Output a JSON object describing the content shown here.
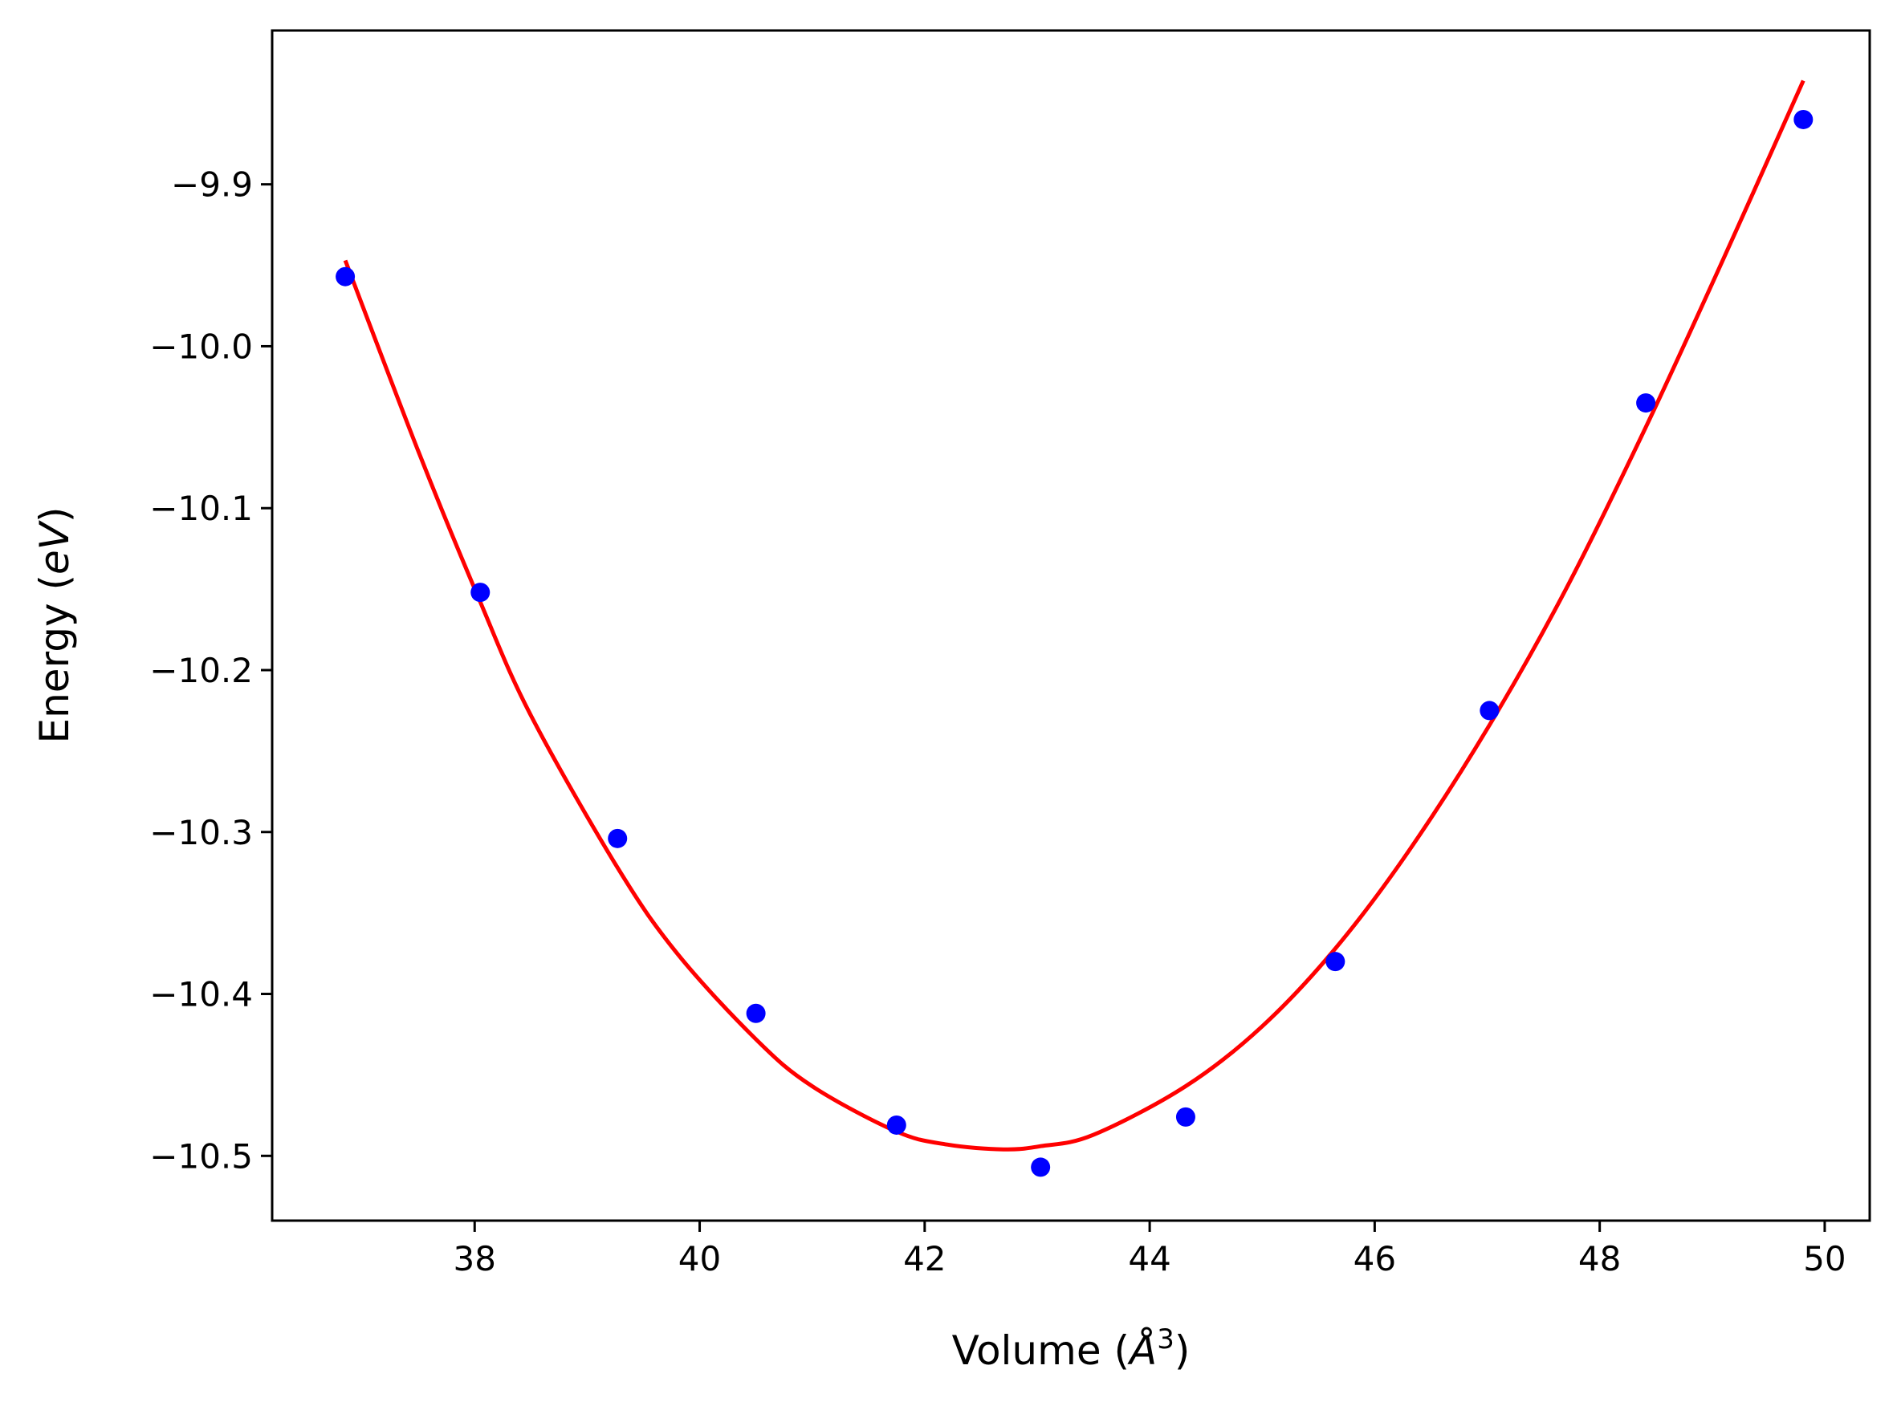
{
  "chart_data": {
    "type": "scatter",
    "xlabel": "Volume (Å³)",
    "xlabel_parts": {
      "prefix": "Volume (",
      "symbol": "Å",
      "superscript": "3",
      "suffix": ")"
    },
    "ylabel": "Energy (eV)",
    "ylabel_parts": {
      "prefix": "Energy (",
      "unit": "eV",
      "suffix": ")"
    },
    "xlim": [
      36.2,
      50.4
    ],
    "ylim": [
      -10.54,
      -9.805
    ],
    "x_ticks": [
      38,
      40,
      42,
      44,
      46,
      48,
      50
    ],
    "x_tick_labels": [
      "38",
      "40",
      "42",
      "44",
      "46",
      "48",
      "50"
    ],
    "y_ticks": [
      -10.5,
      -10.4,
      -10.3,
      -10.2,
      -10.1,
      -10.0,
      -9.9
    ],
    "y_tick_labels": [
      "−10.5",
      "−10.4",
      "−10.3",
      "−10.2",
      "−10.1",
      "−10.0",
      "−9.9"
    ],
    "grid": false,
    "series": [
      {
        "kind": "points",
        "color": "#0000ff",
        "x": [
          36.85,
          38.05,
          39.27,
          40.5,
          41.75,
          43.03,
          44.32,
          45.65,
          47.02,
          48.41,
          49.81
        ],
        "y": [
          -9.957,
          -10.152,
          -10.304,
          -10.412,
          -10.481,
          -10.507,
          -10.476,
          -10.38,
          -10.225,
          -10.035,
          -9.86
        ]
      },
      {
        "kind": "fit-curve",
        "color": "#ff0000",
        "x": [
          36.85,
          37.5,
          38.05,
          38.5,
          39.27,
          39.8,
          40.5,
          41.0,
          41.75,
          42.2,
          42.7,
          43.03,
          43.5,
          44.32,
          45.0,
          45.65,
          46.3,
          47.02,
          47.7,
          48.41,
          49.1,
          49.81
        ],
        "y": [
          -9.947,
          -10.065,
          -10.158,
          -10.228,
          -10.322,
          -10.375,
          -10.428,
          -10.457,
          -10.485,
          -10.493,
          -10.496,
          -10.494,
          -10.487,
          -10.457,
          -10.42,
          -10.372,
          -10.312,
          -10.234,
          -10.15,
          -10.05,
          -9.946,
          -9.836
        ]
      }
    ]
  }
}
